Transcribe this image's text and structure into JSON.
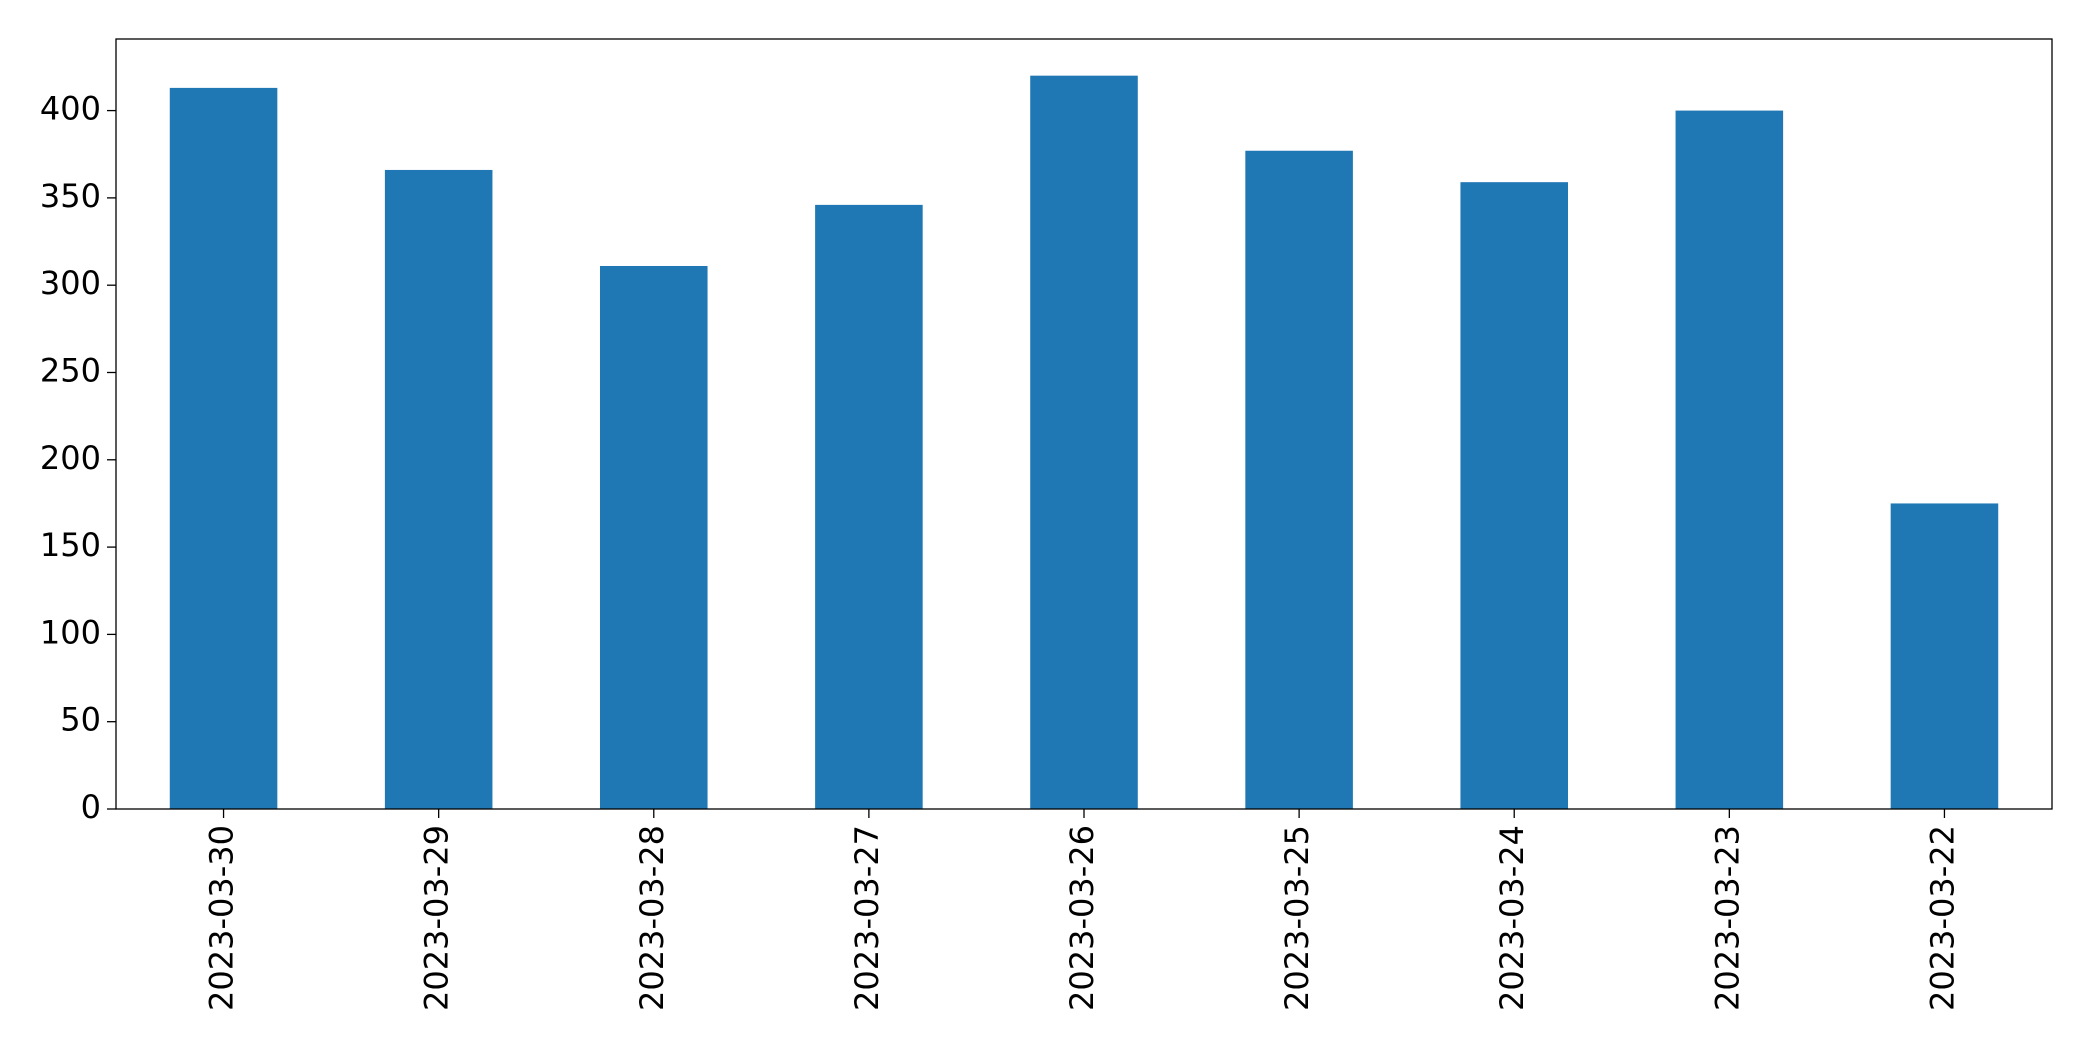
{
  "chart_data": {
    "type": "bar",
    "categories": [
      "2023-03-30",
      "2023-03-29",
      "2023-03-28",
      "2023-03-27",
      "2023-03-26",
      "2023-03-25",
      "2023-03-24",
      "2023-03-23",
      "2023-03-22"
    ],
    "values": [
      413,
      366,
      311,
      346,
      420,
      377,
      359,
      400,
      175
    ],
    "color": "#1f77b4",
    "ylim": [
      0,
      441
    ],
    "yticks": [
      0,
      50,
      100,
      150,
      200,
      250,
      300,
      350,
      400
    ],
    "grid": false
  }
}
